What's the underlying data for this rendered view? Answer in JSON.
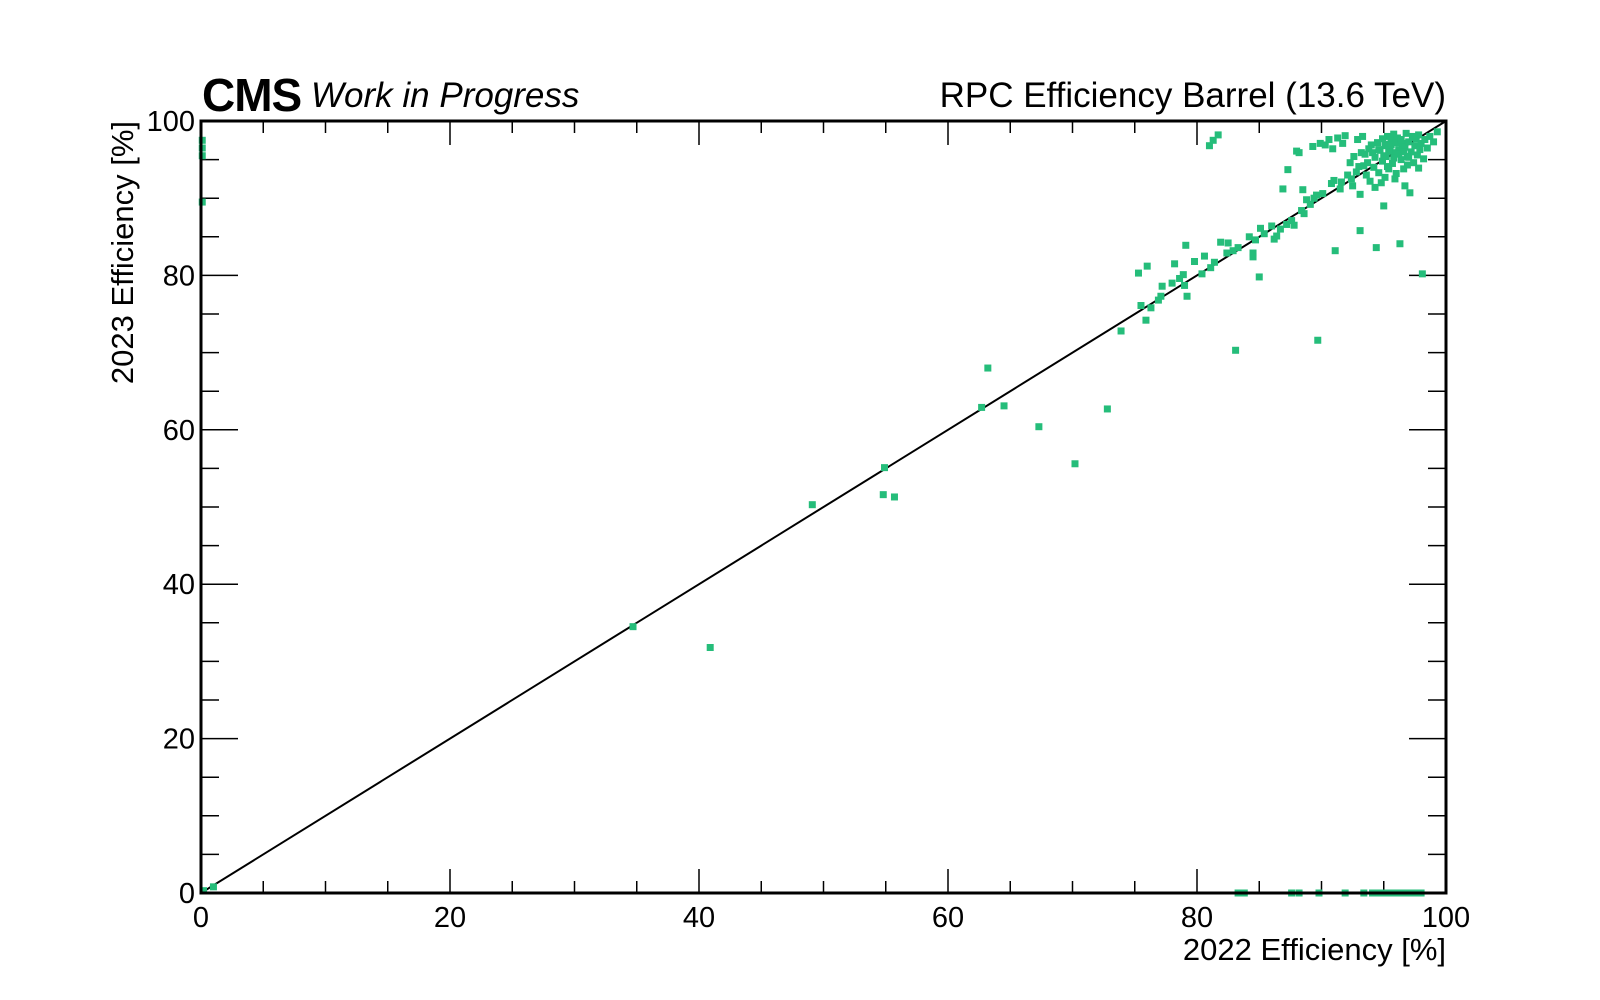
{
  "header": {
    "experiment": "CMS",
    "status": "Work in Progress",
    "title": "RPC Efficiency Barrel (13.6 TeV)"
  },
  "colors": {
    "points": "#25bd7a",
    "diagonal": "#000000",
    "frame": "#000000"
  },
  "chart_data": {
    "type": "scatter",
    "title": "RPC Efficiency Barrel (13.6 TeV)",
    "xlabel": "2022 Efficiency [%]",
    "ylabel": "2023 Efficiency [%]",
    "xlim": [
      0,
      100
    ],
    "ylim": [
      0,
      100
    ],
    "xticks": [
      "0",
      "20",
      "40",
      "60",
      "80",
      "100"
    ],
    "yticks": [
      "0",
      "20",
      "40",
      "60",
      "80",
      "100"
    ],
    "grid": false,
    "reference_line": {
      "from": [
        0,
        0
      ],
      "to": [
        100,
        100
      ]
    },
    "series": [
      {
        "points": [
          [
            0.1,
            97.5
          ],
          [
            0.1,
            96.5
          ],
          [
            0.1,
            95.5
          ],
          [
            0.1,
            89.5
          ],
          [
            0.2,
            0.3
          ],
          [
            1.0,
            0.8
          ],
          [
            34.7,
            34.5
          ],
          [
            40.9,
            31.8
          ],
          [
            49.1,
            50.3
          ],
          [
            54.8,
            51.6
          ],
          [
            54.9,
            55.1
          ],
          [
            55.7,
            51.3
          ],
          [
            62.7,
            62.9
          ],
          [
            63.2,
            68.0
          ],
          [
            64.5,
            63.1
          ],
          [
            67.3,
            60.4
          ],
          [
            70.2,
            55.6
          ],
          [
            72.8,
            62.7
          ],
          [
            73.9,
            72.8
          ],
          [
            75.3,
            80.3
          ],
          [
            75.5,
            76.1
          ],
          [
            75.9,
            74.2
          ],
          [
            76.0,
            81.2
          ],
          [
            76.3,
            75.8
          ],
          [
            76.9,
            76.8
          ],
          [
            77.1,
            77.3
          ],
          [
            77.2,
            78.6
          ],
          [
            78.0,
            79.0
          ],
          [
            78.2,
            81.5
          ],
          [
            78.6,
            79.6
          ],
          [
            78.9,
            80.1
          ],
          [
            79.0,
            78.7
          ],
          [
            79.1,
            83.9
          ],
          [
            79.2,
            77.3
          ],
          [
            79.8,
            81.8
          ],
          [
            80.4,
            80.2
          ],
          [
            80.6,
            82.5
          ],
          [
            81.0,
            96.8
          ],
          [
            81.1,
            81.0
          ],
          [
            81.3,
            97.5
          ],
          [
            81.7,
            98.2
          ],
          [
            81.4,
            81.7
          ],
          [
            81.9,
            84.3
          ],
          [
            82.4,
            82.9
          ],
          [
            82.5,
            84.2
          ],
          [
            82.9,
            83.2
          ],
          [
            83.1,
            70.3
          ],
          [
            83.3,
            83.6
          ],
          [
            84.2,
            85.0
          ],
          [
            84.5,
            82.4
          ],
          [
            84.5,
            82.9
          ],
          [
            84.7,
            84.6
          ],
          [
            85.0,
            79.8
          ],
          [
            85.1,
            86.1
          ],
          [
            85.4,
            85.4
          ],
          [
            86.0,
            86.4
          ],
          [
            86.2,
            84.7
          ],
          [
            86.4,
            85.1
          ],
          [
            86.7,
            86.0
          ],
          [
            86.9,
            91.2
          ],
          [
            87.2,
            86.6
          ],
          [
            87.3,
            93.7
          ],
          [
            87.6,
            87.1
          ],
          [
            87.8,
            86.5
          ],
          [
            88.0,
            96.1
          ],
          [
            88.2,
            95.9
          ],
          [
            88.4,
            88.4
          ],
          [
            88.6,
            88.0
          ],
          [
            88.8,
            89.8
          ],
          [
            89.1,
            89.2
          ],
          [
            89.3,
            96.7
          ],
          [
            89.4,
            90.0
          ],
          [
            89.6,
            90.4
          ],
          [
            89.9,
            97.1
          ],
          [
            89.7,
            71.6
          ],
          [
            90.1,
            90.6
          ],
          [
            90.3,
            96.9
          ],
          [
            90.6,
            97.6
          ],
          [
            90.8,
            91.9
          ],
          [
            91.0,
            92.3
          ],
          [
            91.1,
            83.2
          ],
          [
            91.3,
            97.8
          ],
          [
            91.5,
            91.2
          ],
          [
            91.6,
            92.1
          ],
          [
            91.9,
            98.1
          ],
          [
            92.1,
            93.0
          ],
          [
            92.3,
            94.6
          ],
          [
            92.4,
            92.5
          ],
          [
            92.6,
            95.4
          ],
          [
            92.8,
            93.4
          ],
          [
            93.0,
            94.1
          ],
          [
            93.1,
            85.8
          ],
          [
            93.2,
            95.9
          ],
          [
            93.4,
            94.2
          ],
          [
            93.6,
            93.0
          ],
          [
            93.7,
            94.6
          ],
          [
            93.9,
            92.2
          ],
          [
            94.0,
            96.9
          ],
          [
            94.2,
            94.0
          ],
          [
            94.3,
            95.3
          ],
          [
            94.4,
            83.6
          ],
          [
            94.5,
            97.2
          ],
          [
            94.6,
            93.3
          ],
          [
            94.7,
            96.2
          ],
          [
            94.8,
            92.0
          ],
          [
            94.9,
            94.8
          ],
          [
            95.0,
            89.0
          ],
          [
            95.1,
            97.0
          ],
          [
            95.2,
            95.4
          ],
          [
            95.3,
            98.0
          ],
          [
            95.4,
            93.8
          ],
          [
            95.5,
            96.6
          ],
          [
            95.6,
            97.5
          ],
          [
            95.7,
            94.5
          ],
          [
            95.8,
            98.3
          ],
          [
            95.9,
            95.9
          ],
          [
            96.0,
            93.2
          ],
          [
            96.1,
            97.8
          ],
          [
            96.2,
            96.3
          ],
          [
            96.3,
            84.1
          ],
          [
            96.4,
            95.0
          ],
          [
            96.5,
            97.1
          ],
          [
            96.6,
            93.8
          ],
          [
            96.7,
            96.6
          ],
          [
            96.8,
            98.4
          ],
          [
            96.9,
            95.4
          ],
          [
            97.0,
            97.3
          ],
          [
            97.1,
            90.7
          ],
          [
            97.2,
            96.0
          ],
          [
            97.3,
            98.0
          ],
          [
            97.4,
            94.6
          ],
          [
            97.5,
            96.8
          ],
          [
            97.6,
            97.7
          ],
          [
            97.7,
            95.6
          ],
          [
            97.8,
            98.2
          ],
          [
            97.9,
            96.3
          ],
          [
            98.0,
            97.1
          ],
          [
            98.1,
            80.2
          ],
          [
            98.2,
            95.1
          ],
          [
            98.3,
            97.6
          ],
          [
            98.5,
            96.5
          ],
          [
            98.7,
            98.0
          ],
          [
            99.0,
            97.3
          ],
          [
            99.3,
            98.6
          ],
          [
            93.5,
            95.7
          ],
          [
            94.1,
            95.9
          ],
          [
            94.6,
            96.3
          ],
          [
            95.0,
            95.5
          ],
          [
            95.4,
            96.1
          ],
          [
            95.8,
            95.2
          ],
          [
            96.2,
            95.7
          ],
          [
            96.6,
            96.0
          ],
          [
            97.0,
            95.3
          ],
          [
            95.2,
            96.8
          ],
          [
            95.6,
            96.9
          ],
          [
            96.0,
            97.2
          ],
          [
            96.4,
            97.6
          ],
          [
            94.9,
            97.7
          ],
          [
            96.9,
            94.3
          ],
          [
            95.3,
            94.1
          ],
          [
            93.8,
            96.4
          ],
          [
            97.4,
            97.9
          ],
          [
            92.9,
            97.6
          ],
          [
            93.3,
            98.0
          ],
          [
            91.7,
            97.1
          ],
          [
            90.9,
            96.4
          ],
          [
            88.5,
            91.1
          ],
          [
            92.5,
            91.6
          ],
          [
            93.1,
            90.5
          ],
          [
            94.3,
            91.4
          ],
          [
            95.1,
            92.7
          ],
          [
            95.9,
            92.5
          ],
          [
            96.7,
            91.6
          ],
          [
            97.8,
            93.9
          ],
          [
            83.3,
            0.0
          ],
          [
            83.8,
            0.0
          ],
          [
            87.6,
            0.0
          ],
          [
            88.2,
            0.0
          ],
          [
            89.8,
            0.0
          ],
          [
            91.9,
            0.0
          ],
          [
            93.4,
            0.0
          ],
          [
            94.1,
            0.0
          ],
          [
            94.6,
            0.0
          ],
          [
            95.0,
            0.0
          ],
          [
            95.5,
            0.0
          ],
          [
            95.9,
            0.0
          ],
          [
            96.3,
            0.0
          ],
          [
            96.8,
            0.0
          ],
          [
            97.1,
            0.0
          ],
          [
            97.6,
            0.0
          ],
          [
            98.0,
            0.0
          ]
        ]
      }
    ]
  }
}
